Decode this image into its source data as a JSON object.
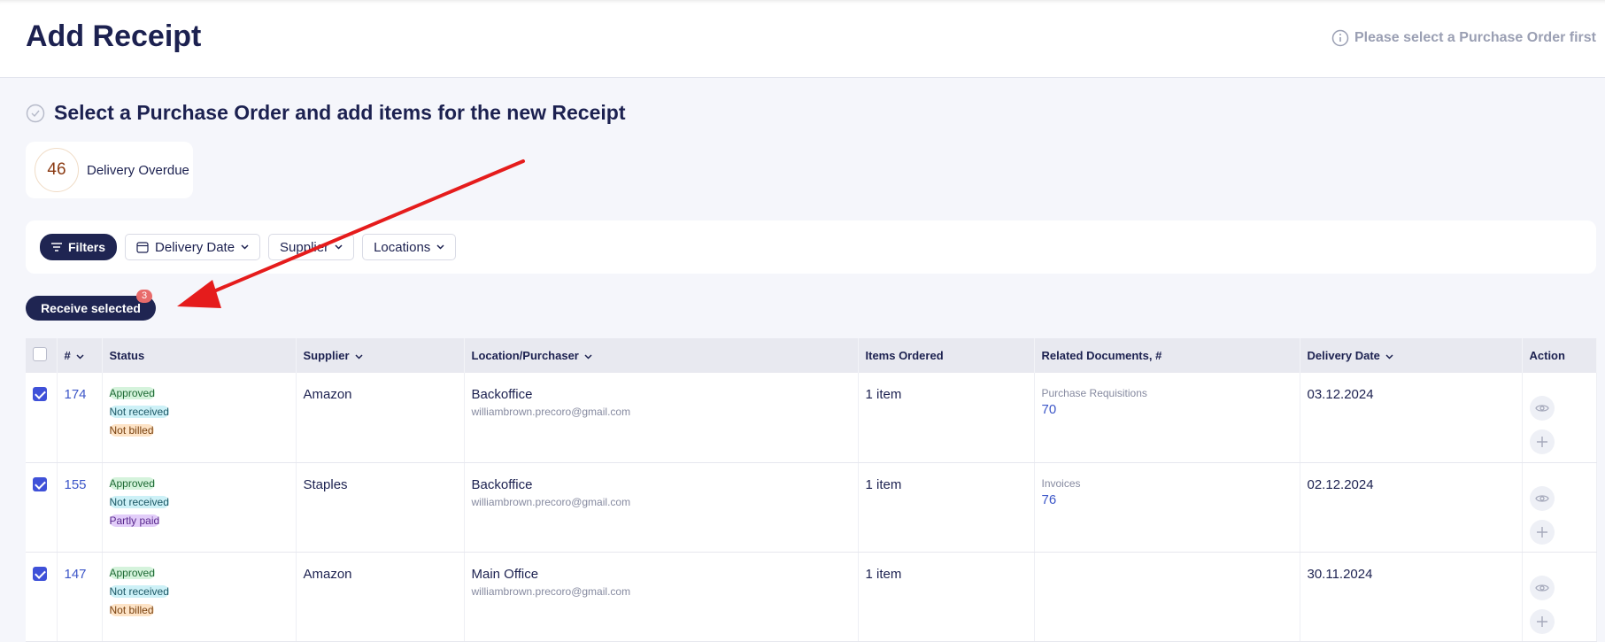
{
  "header": {
    "title": "Add Receipt",
    "hint": "Please select a Purchase Order first"
  },
  "section_title": "Select a Purchase Order and add items for the new Receipt",
  "overdue": {
    "count": 46,
    "label": "Delivery Overdue"
  },
  "filters": [
    "Filters",
    "Delivery Date",
    "Supplier",
    "Locations"
  ],
  "receive_button": {
    "label": "Receive selected",
    "badge": 3
  },
  "table": {
    "columns": [
      "#",
      "Status",
      "Supplier",
      "Location/Purchaser",
      "Items Ordered",
      "Related Documents, #",
      "Delivery Date",
      "Action"
    ],
    "rows": [
      {
        "number": 174,
        "statuses": [
          {
            "label": "Approved",
            "bg": "#d5f3dc",
            "fg": "#1f6a35"
          },
          {
            "label": "Not received",
            "bg": "#cdf1f7",
            "fg": "#1d5866"
          },
          {
            "label": "Not billed",
            "bg": "#fde3c6",
            "fg": "#7a4210"
          }
        ],
        "supplier": "Amazon",
        "location": "Backoffice",
        "email": "williambrown.precoro@gmail.com",
        "items": "1 item",
        "related_type": "Purchase Requisitions",
        "related_number": 70,
        "delivery_date": "03.12.2024"
      },
      {
        "number": 155,
        "statuses": [
          {
            "label": "Approved",
            "bg": "#d5f3dc",
            "fg": "#1f6a35"
          },
          {
            "label": "Not received",
            "bg": "#cdf1f7",
            "fg": "#1d5866"
          },
          {
            "label": "Partly paid",
            "bg": "#e2cdf9",
            "fg": "#5a2a8e"
          }
        ],
        "supplier": "Staples",
        "location": "Backoffice",
        "email": "williambrown.precoro@gmail.com",
        "items": "1 item",
        "related_type": "Invoices",
        "related_number": 76,
        "delivery_date": "02.12.2024"
      },
      {
        "number": 147,
        "statuses": [
          {
            "label": "Approved",
            "bg": "#d5f3dc",
            "fg": "#1f6a35"
          },
          {
            "label": "Not received",
            "bg": "#cdf1f7",
            "fg": "#1d5866"
          },
          {
            "label": "Not billed",
            "bg": "#fde3c6",
            "fg": "#7a4210"
          }
        ],
        "supplier": "Amazon",
        "location": "Main Office",
        "email": "williambrown.precoro@gmail.com",
        "items": "1 item",
        "delivery_date": "30.11.2024"
      }
    ]
  }
}
